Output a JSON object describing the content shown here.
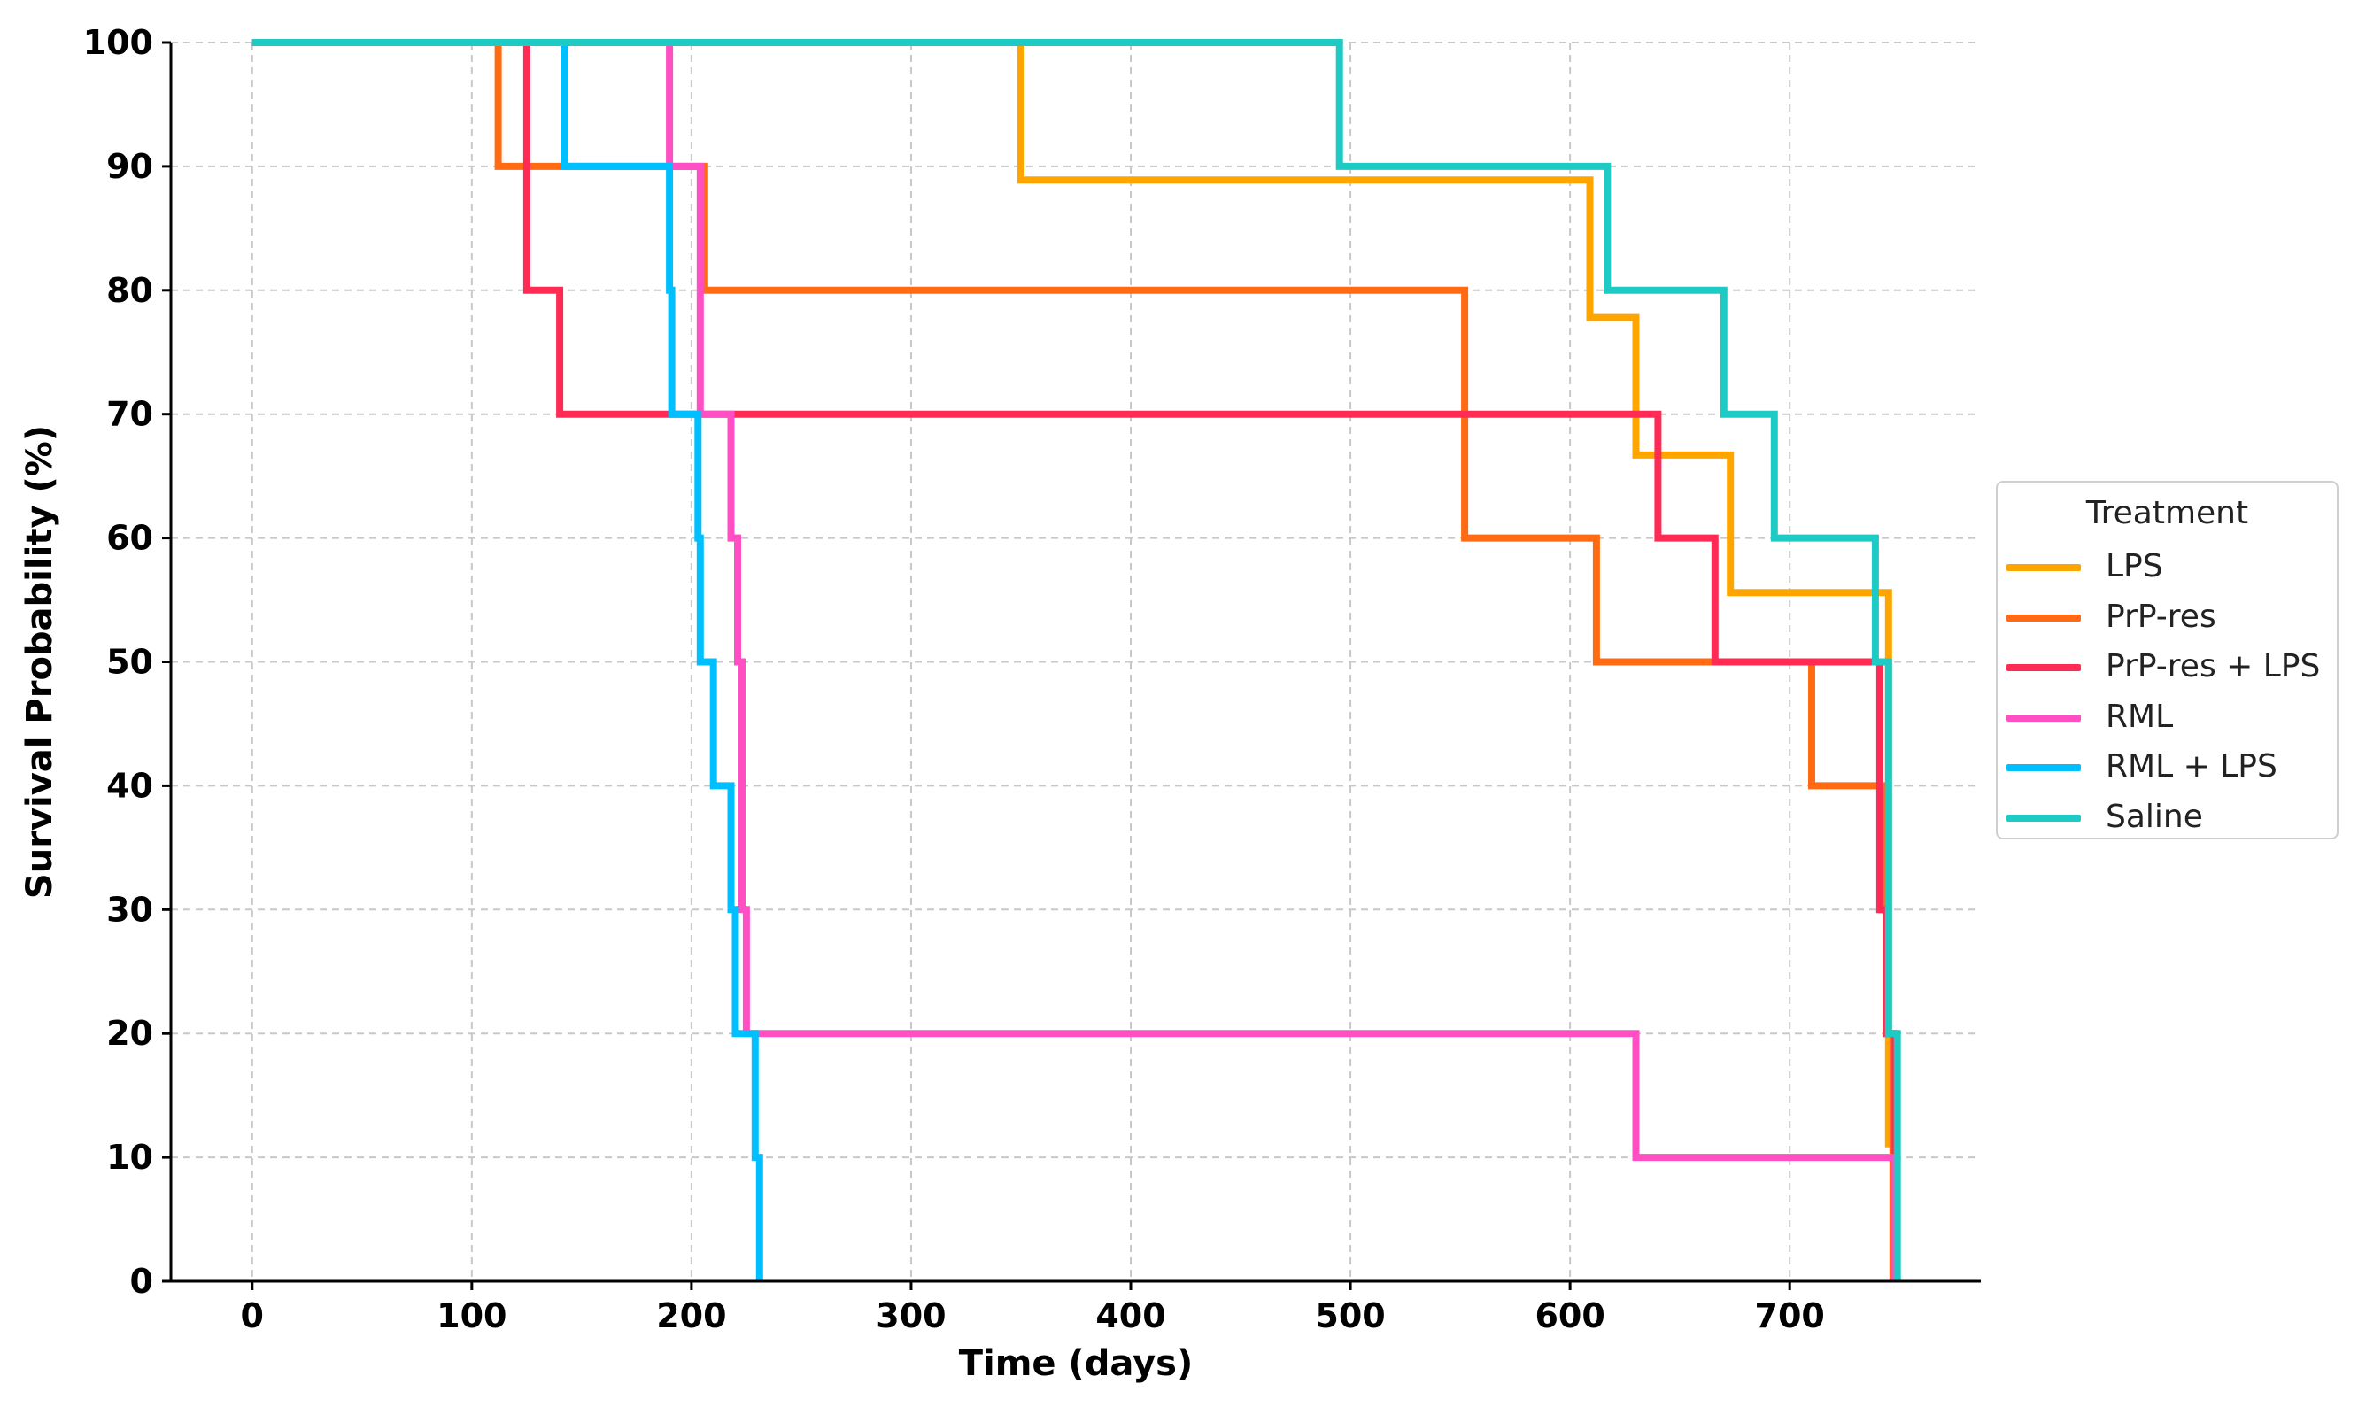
{
  "chart_data": {
    "type": "line",
    "step": true,
    "title": "",
    "xlabel": "Time (days)",
    "ylabel": "Survival Probability (%)",
    "xlim": [
      -37,
      787
    ],
    "ylim": [
      0,
      100
    ],
    "xticks": [
      0,
      100,
      200,
      300,
      400,
      500,
      600,
      700
    ],
    "yticks": [
      0,
      10,
      20,
      30,
      40,
      50,
      60,
      70,
      80,
      90,
      100
    ],
    "grid": true,
    "legend_title": "Treatment",
    "legend_position": "right",
    "series": [
      {
        "name": "LPS",
        "color": "#FFA500",
        "points": [
          [
            0,
            100
          ],
          [
            350,
            100
          ],
          [
            350,
            88.9
          ],
          [
            609,
            88.9
          ],
          [
            609,
            77.8
          ],
          [
            630,
            77.8
          ],
          [
            630,
            66.7
          ],
          [
            673,
            66.7
          ],
          [
            673,
            55.6
          ],
          [
            745,
            55.6
          ],
          [
            745,
            11.1
          ],
          [
            748,
            11.1
          ],
          [
            748,
            0
          ]
        ]
      },
      {
        "name": "PrP-res",
        "color": "#FF6A13",
        "points": [
          [
            0,
            100
          ],
          [
            112,
            100
          ],
          [
            112,
            90
          ],
          [
            140,
            90
          ],
          [
            140,
            90
          ],
          [
            206,
            90
          ],
          [
            206,
            80
          ],
          [
            552,
            80
          ],
          [
            552,
            60
          ],
          [
            612,
            60
          ],
          [
            612,
            50
          ],
          [
            710,
            50
          ],
          [
            710,
            40
          ],
          [
            742,
            40
          ],
          [
            742,
            30
          ],
          [
            744,
            30
          ],
          [
            744,
            20
          ],
          [
            747,
            20
          ],
          [
            747,
            0
          ]
        ]
      },
      {
        "name": "PrP-res + LPS",
        "color": "#FF2B55",
        "points": [
          [
            0,
            100
          ],
          [
            125,
            100
          ],
          [
            125,
            80
          ],
          [
            140,
            80
          ],
          [
            140,
            70
          ],
          [
            640,
            70
          ],
          [
            640,
            60
          ],
          [
            666,
            60
          ],
          [
            666,
            50
          ],
          [
            741,
            50
          ],
          [
            741,
            30
          ],
          [
            744,
            30
          ],
          [
            744,
            20
          ],
          [
            748,
            20
          ],
          [
            748,
            0
          ]
        ]
      },
      {
        "name": "RML",
        "color": "#FF4FC3",
        "points": [
          [
            0,
            100
          ],
          [
            190,
            100
          ],
          [
            190,
            90
          ],
          [
            204,
            90
          ],
          [
            204,
            70
          ],
          [
            218,
            70
          ],
          [
            218,
            60
          ],
          [
            221,
            60
          ],
          [
            221,
            50
          ],
          [
            223,
            50
          ],
          [
            223,
            30
          ],
          [
            225,
            30
          ],
          [
            225,
            20
          ],
          [
            630,
            20
          ],
          [
            630,
            10
          ],
          [
            748,
            10
          ],
          [
            748,
            0
          ]
        ]
      },
      {
        "name": "RML + LPS",
        "color": "#00BFFF",
        "points": [
          [
            0,
            100
          ],
          [
            142,
            100
          ],
          [
            142,
            90
          ],
          [
            190,
            90
          ],
          [
            190,
            80
          ],
          [
            191,
            80
          ],
          [
            191,
            70
          ],
          [
            203,
            70
          ],
          [
            203,
            60
          ],
          [
            204,
            60
          ],
          [
            204,
            50
          ],
          [
            210,
            50
          ],
          [
            210,
            40
          ],
          [
            218,
            40
          ],
          [
            218,
            30
          ],
          [
            220,
            30
          ],
          [
            220,
            20
          ],
          [
            229,
            20
          ],
          [
            229,
            10
          ],
          [
            231,
            10
          ],
          [
            231,
            0
          ]
        ]
      },
      {
        "name": "Saline",
        "color": "#1ECBC4",
        "points": [
          [
            0,
            100
          ],
          [
            495,
            100
          ],
          [
            495,
            90
          ],
          [
            617,
            90
          ],
          [
            617,
            80
          ],
          [
            670,
            80
          ],
          [
            670,
            70
          ],
          [
            693,
            70
          ],
          [
            693,
            60
          ],
          [
            739,
            60
          ],
          [
            739,
            50
          ],
          [
            745,
            50
          ],
          [
            745,
            20
          ],
          [
            749,
            20
          ],
          [
            749,
            0
          ]
        ]
      }
    ]
  }
}
